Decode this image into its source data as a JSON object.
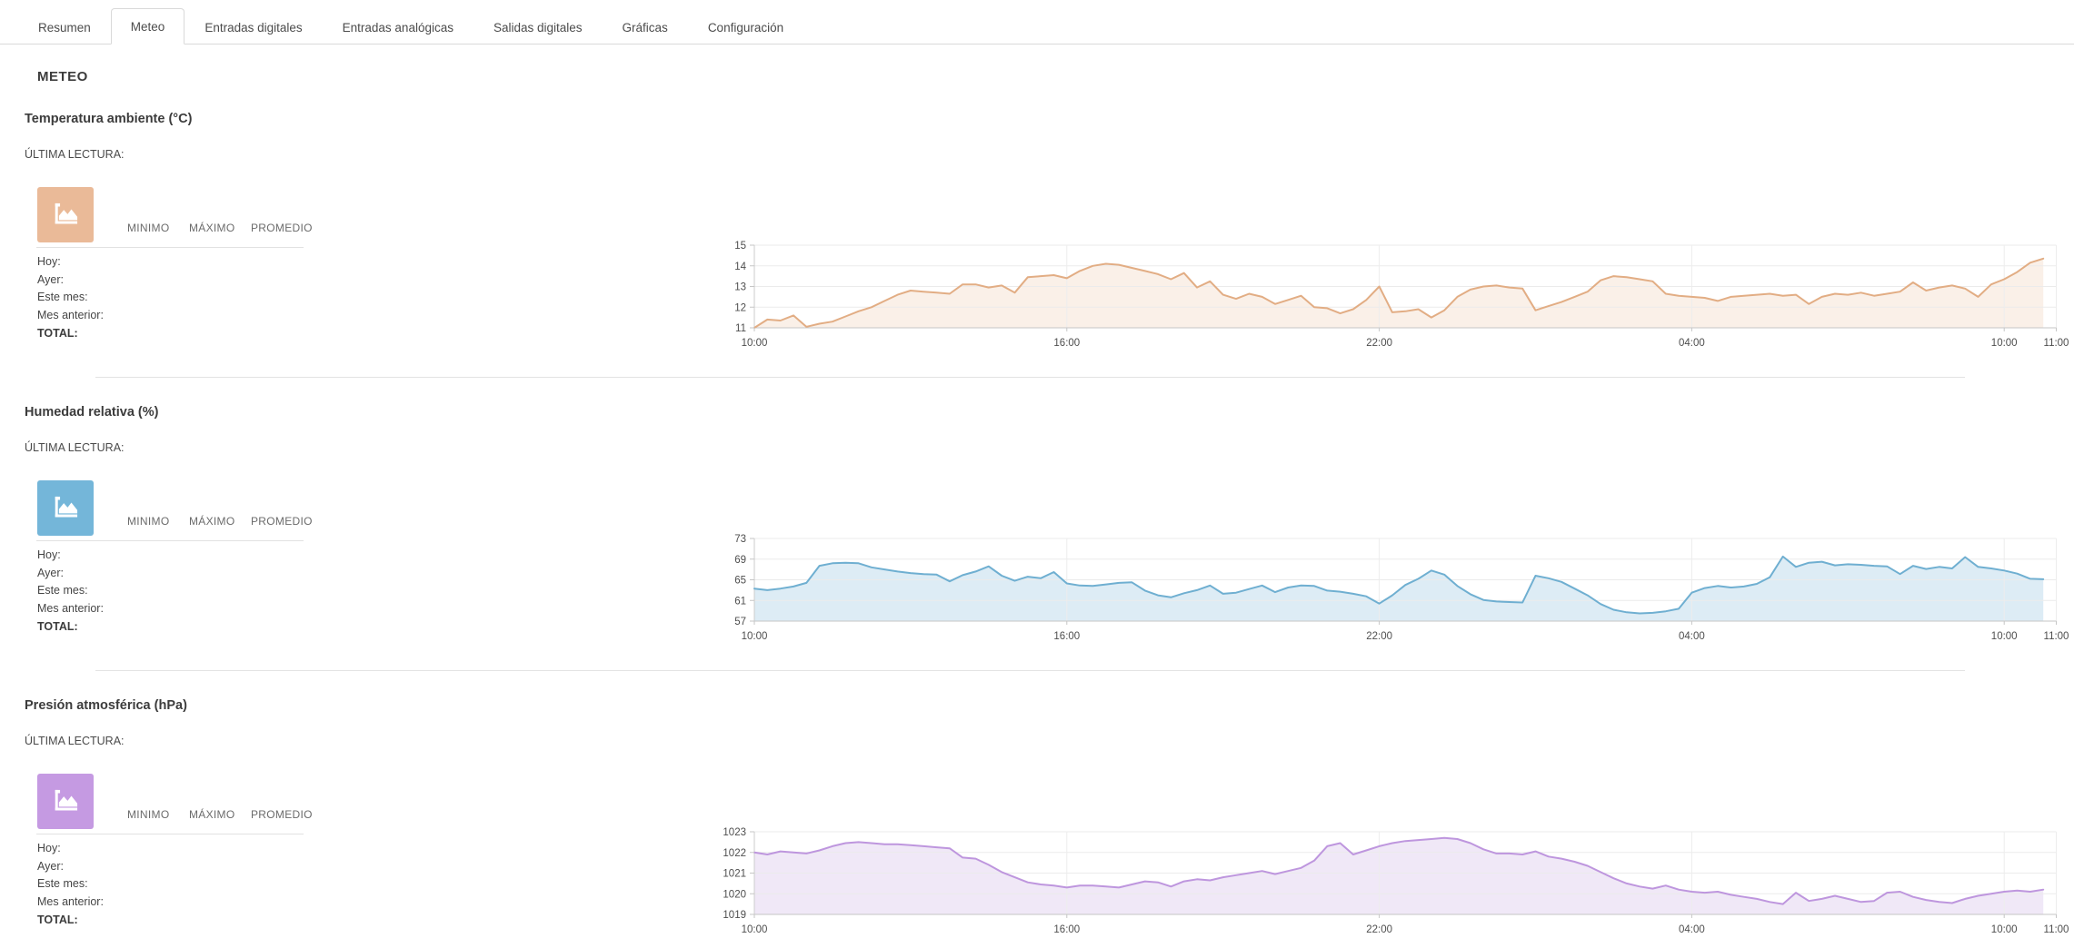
{
  "tabs": {
    "items": [
      {
        "label": "Resumen",
        "active": false
      },
      {
        "label": "Meteo",
        "active": true
      },
      {
        "label": "Entradas digitales",
        "active": false
      },
      {
        "label": "Entradas analógicas",
        "active": false
      },
      {
        "label": "Salidas digitales",
        "active": false
      },
      {
        "label": "Gráficas",
        "active": false
      },
      {
        "label": "Configuración",
        "active": false
      }
    ]
  },
  "page": {
    "title": "METEO"
  },
  "sections": [
    {
      "title": "Temperatura ambiente (°C)",
      "last_reading_label": "ÚLTIMA LECTURA:",
      "last_reading_value": "",
      "accent_color": "#eaba98",
      "icon": "area-chart-icon",
      "table": {
        "headers": [
          "MINIMO",
          "MÁXIMO",
          "PROMEDIO"
        ],
        "rows": [
          {
            "label": "Hoy:",
            "min": "",
            "max": "",
            "avg": ""
          },
          {
            "label": "Ayer:",
            "min": "",
            "max": "",
            "avg": ""
          },
          {
            "label": "Este mes:",
            "min": "",
            "max": "",
            "avg": ""
          },
          {
            "label": "Mes anterior:",
            "min": "",
            "max": "",
            "avg": ""
          },
          {
            "label": "TOTAL:",
            "min": "",
            "max": "",
            "avg": ""
          }
        ]
      }
    },
    {
      "title": "Humedad relativa (%)",
      "last_reading_label": "ÚLTIMA LECTURA:",
      "last_reading_value": "",
      "accent_color": "#74b6d9",
      "icon": "area-chart-icon",
      "table": {
        "headers": [
          "MINIMO",
          "MÁXIMO",
          "PROMEDIO"
        ],
        "rows": [
          {
            "label": "Hoy:",
            "min": "",
            "max": "",
            "avg": ""
          },
          {
            "label": "Ayer:",
            "min": "",
            "max": "",
            "avg": ""
          },
          {
            "label": "Este mes:",
            "min": "",
            "max": "",
            "avg": ""
          },
          {
            "label": "Mes anterior:",
            "min": "",
            "max": "",
            "avg": ""
          },
          {
            "label": "TOTAL:",
            "min": "",
            "max": "",
            "avg": ""
          }
        ]
      }
    },
    {
      "title": "Presión atmosférica (hPa)",
      "last_reading_label": "ÚLTIMA LECTURA:",
      "last_reading_value": "",
      "accent_color": "#c59ae2",
      "icon": "area-chart-icon",
      "table": {
        "headers": [
          "MINIMO",
          "MÁXIMO",
          "PROMEDIO"
        ],
        "rows": [
          {
            "label": "Hoy:",
            "min": "",
            "max": "",
            "avg": ""
          },
          {
            "label": "Ayer:",
            "min": "",
            "max": "",
            "avg": ""
          },
          {
            "label": "Este mes:",
            "min": "",
            "max": "",
            "avg": ""
          },
          {
            "label": "Mes anterior:",
            "min": "",
            "max": "",
            "avg": ""
          },
          {
            "label": "TOTAL:",
            "min": "",
            "max": "",
            "avg": ""
          }
        ]
      }
    }
  ],
  "chart_data": [
    {
      "type": "area",
      "title": "Temperatura ambiente (°C)",
      "start_time": "10:00",
      "interval_minutes": 15,
      "x_tick_labels": [
        "10:00",
        "16:00",
        "22:00",
        "04:00",
        "10:00",
        "11:00"
      ],
      "x_tick_hours": [
        0,
        6,
        12,
        18,
        24,
        25
      ],
      "xlim_hours": [
        0,
        25
      ],
      "ylim": [
        11,
        15
      ],
      "y_ticks": [
        11,
        12,
        13,
        14,
        15
      ],
      "line_color": "#e2ad84",
      "fill_color": "#faf0e8",
      "values": [
        11.0,
        11.4,
        11.35,
        11.6,
        11.05,
        11.2,
        11.3,
        11.55,
        11.8,
        12.0,
        12.3,
        12.6,
        12.8,
        12.75,
        12.7,
        12.65,
        13.1,
        13.1,
        12.95,
        13.05,
        12.7,
        13.45,
        13.5,
        13.55,
        13.4,
        13.75,
        14.0,
        14.1,
        14.05,
        13.9,
        13.75,
        13.6,
        13.35,
        13.65,
        12.95,
        13.25,
        12.6,
        12.4,
        12.65,
        12.5,
        12.15,
        12.35,
        12.55,
        12.0,
        11.95,
        11.7,
        11.9,
        12.35,
        13.0,
        11.75,
        11.8,
        11.9,
        11.5,
        11.85,
        12.5,
        12.85,
        13.0,
        13.05,
        12.95,
        12.9,
        11.85,
        12.05,
        12.25,
        12.5,
        12.75,
        13.3,
        13.5,
        13.45,
        13.35,
        13.25,
        12.65,
        12.55,
        12.5,
        12.45,
        12.3,
        12.5,
        12.55,
        12.6,
        12.65,
        12.55,
        12.6,
        12.15,
        12.5,
        12.65,
        12.6,
        12.7,
        12.55,
        12.65,
        12.75,
        13.2,
        12.8,
        12.95,
        13.05,
        12.9,
        12.5,
        13.1,
        13.35,
        13.7,
        14.15,
        14.35
      ]
    },
    {
      "type": "area",
      "title": "Humedad relativa (%)",
      "start_time": "10:00",
      "interval_minutes": 15,
      "x_tick_labels": [
        "10:00",
        "16:00",
        "22:00",
        "04:00",
        "10:00",
        "11:00"
      ],
      "x_tick_hours": [
        0,
        6,
        12,
        18,
        24,
        25
      ],
      "xlim_hours": [
        0,
        25
      ],
      "ylim": [
        57,
        73
      ],
      "y_ticks": [
        57,
        61,
        65,
        69,
        73
      ],
      "line_color": "#6fafd1",
      "fill_color": "#ddecf5",
      "values": [
        63.3,
        63.0,
        63.3,
        63.7,
        64.4,
        67.7,
        68.2,
        68.3,
        68.2,
        67.4,
        67.0,
        66.6,
        66.3,
        66.1,
        66.0,
        64.7,
        65.9,
        66.6,
        67.6,
        65.8,
        64.8,
        65.6,
        65.3,
        66.5,
        64.3,
        63.9,
        63.8,
        64.1,
        64.4,
        64.5,
        62.9,
        62.0,
        61.6,
        62.4,
        63.0,
        63.9,
        62.3,
        62.5,
        63.2,
        63.9,
        62.6,
        63.5,
        63.9,
        63.8,
        62.9,
        62.7,
        62.3,
        61.8,
        60.4,
        62.0,
        64.0,
        65.2,
        66.8,
        66.0,
        63.8,
        62.2,
        61.1,
        60.8,
        60.7,
        60.6,
        65.8,
        65.3,
        64.6,
        63.3,
        62.0,
        60.3,
        59.2,
        58.7,
        58.5,
        58.6,
        58.9,
        59.4,
        62.5,
        63.4,
        63.8,
        63.5,
        63.7,
        64.2,
        65.5,
        69.5,
        67.5,
        68.3,
        68.5,
        67.8,
        68.0,
        67.9,
        67.7,
        67.6,
        66.1,
        67.7,
        67.1,
        67.5,
        67.2,
        69.4,
        67.5,
        67.2,
        66.8,
        66.2,
        65.2,
        65.1
      ]
    },
    {
      "type": "area",
      "title": "Presión atmosférica (hPa)",
      "start_time": "10:00",
      "interval_minutes": 15,
      "x_tick_labels": [
        "10:00",
        "16:00",
        "22:00",
        "04:00",
        "10:00",
        "11:00"
      ],
      "x_tick_hours": [
        0,
        6,
        12,
        18,
        24,
        25
      ],
      "xlim_hours": [
        0,
        25
      ],
      "ylim": [
        1019,
        1023
      ],
      "y_ticks": [
        1019,
        1020,
        1021,
        1022,
        1023
      ],
      "line_color": "#be96de",
      "fill_color": "#f0e8f7",
      "values": [
        1022.0,
        1021.9,
        1022.05,
        1022.0,
        1021.95,
        1022.1,
        1022.3,
        1022.45,
        1022.5,
        1022.45,
        1022.4,
        1022.4,
        1022.35,
        1022.3,
        1022.25,
        1022.2,
        1021.75,
        1021.7,
        1021.4,
        1021.05,
        1020.8,
        1020.55,
        1020.45,
        1020.4,
        1020.3,
        1020.4,
        1020.4,
        1020.35,
        1020.3,
        1020.45,
        1020.6,
        1020.55,
        1020.35,
        1020.6,
        1020.7,
        1020.65,
        1020.8,
        1020.9,
        1021.0,
        1021.1,
        1020.95,
        1021.1,
        1021.25,
        1021.6,
        1022.3,
        1022.45,
        1021.9,
        1022.1,
        1022.3,
        1022.45,
        1022.55,
        1022.6,
        1022.65,
        1022.7,
        1022.65,
        1022.45,
        1022.15,
        1021.95,
        1021.95,
        1021.9,
        1022.05,
        1021.8,
        1021.7,
        1021.55,
        1021.35,
        1021.05,
        1020.75,
        1020.5,
        1020.35,
        1020.25,
        1020.4,
        1020.2,
        1020.1,
        1020.05,
        1020.1,
        1019.95,
        1019.85,
        1019.75,
        1019.6,
        1019.5,
        1020.05,
        1019.65,
        1019.75,
        1019.9,
        1019.75,
        1019.6,
        1019.65,
        1020.05,
        1020.1,
        1019.85,
        1019.7,
        1019.6,
        1019.55,
        1019.75,
        1019.9,
        1020.0,
        1020.1,
        1020.15,
        1020.1,
        1020.2
      ]
    }
  ]
}
